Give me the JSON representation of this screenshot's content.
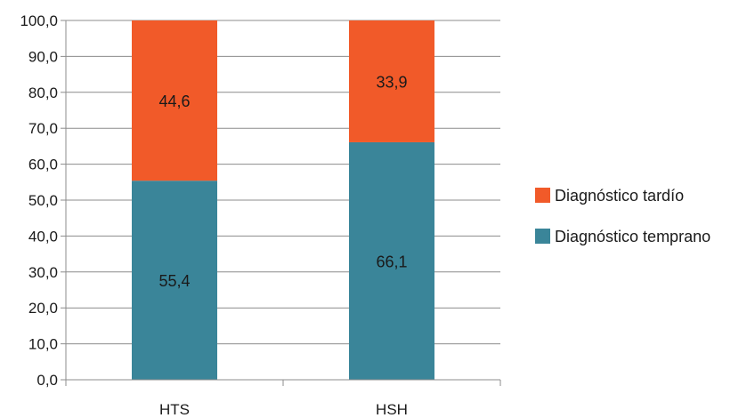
{
  "chart_data": {
    "type": "bar",
    "stacked": true,
    "categories": [
      "HTS",
      "HSH"
    ],
    "series": [
      {
        "name": "Diagnóstico temprano",
        "values": [
          55.4,
          66.1
        ],
        "labels": [
          "55,4",
          "66,1"
        ],
        "color": "#3a8599"
      },
      {
        "name": "Diagnóstico tardío",
        "values": [
          44.6,
          33.9
        ],
        "labels": [
          "44,6",
          "33,9"
        ],
        "color": "#f15a29"
      }
    ],
    "title": "",
    "xlabel": "",
    "ylabel": "",
    "ylim": [
      0,
      100
    ],
    "yticks": [
      0,
      10,
      20,
      30,
      40,
      50,
      60,
      70,
      80,
      90,
      100
    ],
    "ytick_labels": [
      "0,0",
      "10,0",
      "20,0",
      "30,0",
      "40,0",
      "50,0",
      "60,0",
      "70,0",
      "80,0",
      "90,0",
      "100,0"
    ],
    "grid": true,
    "gridline_color": "#8c8c8c",
    "legend": {
      "position": "right",
      "entries": [
        "Diagnóstico tardío",
        "Diagnóstico temprano"
      ]
    }
  }
}
